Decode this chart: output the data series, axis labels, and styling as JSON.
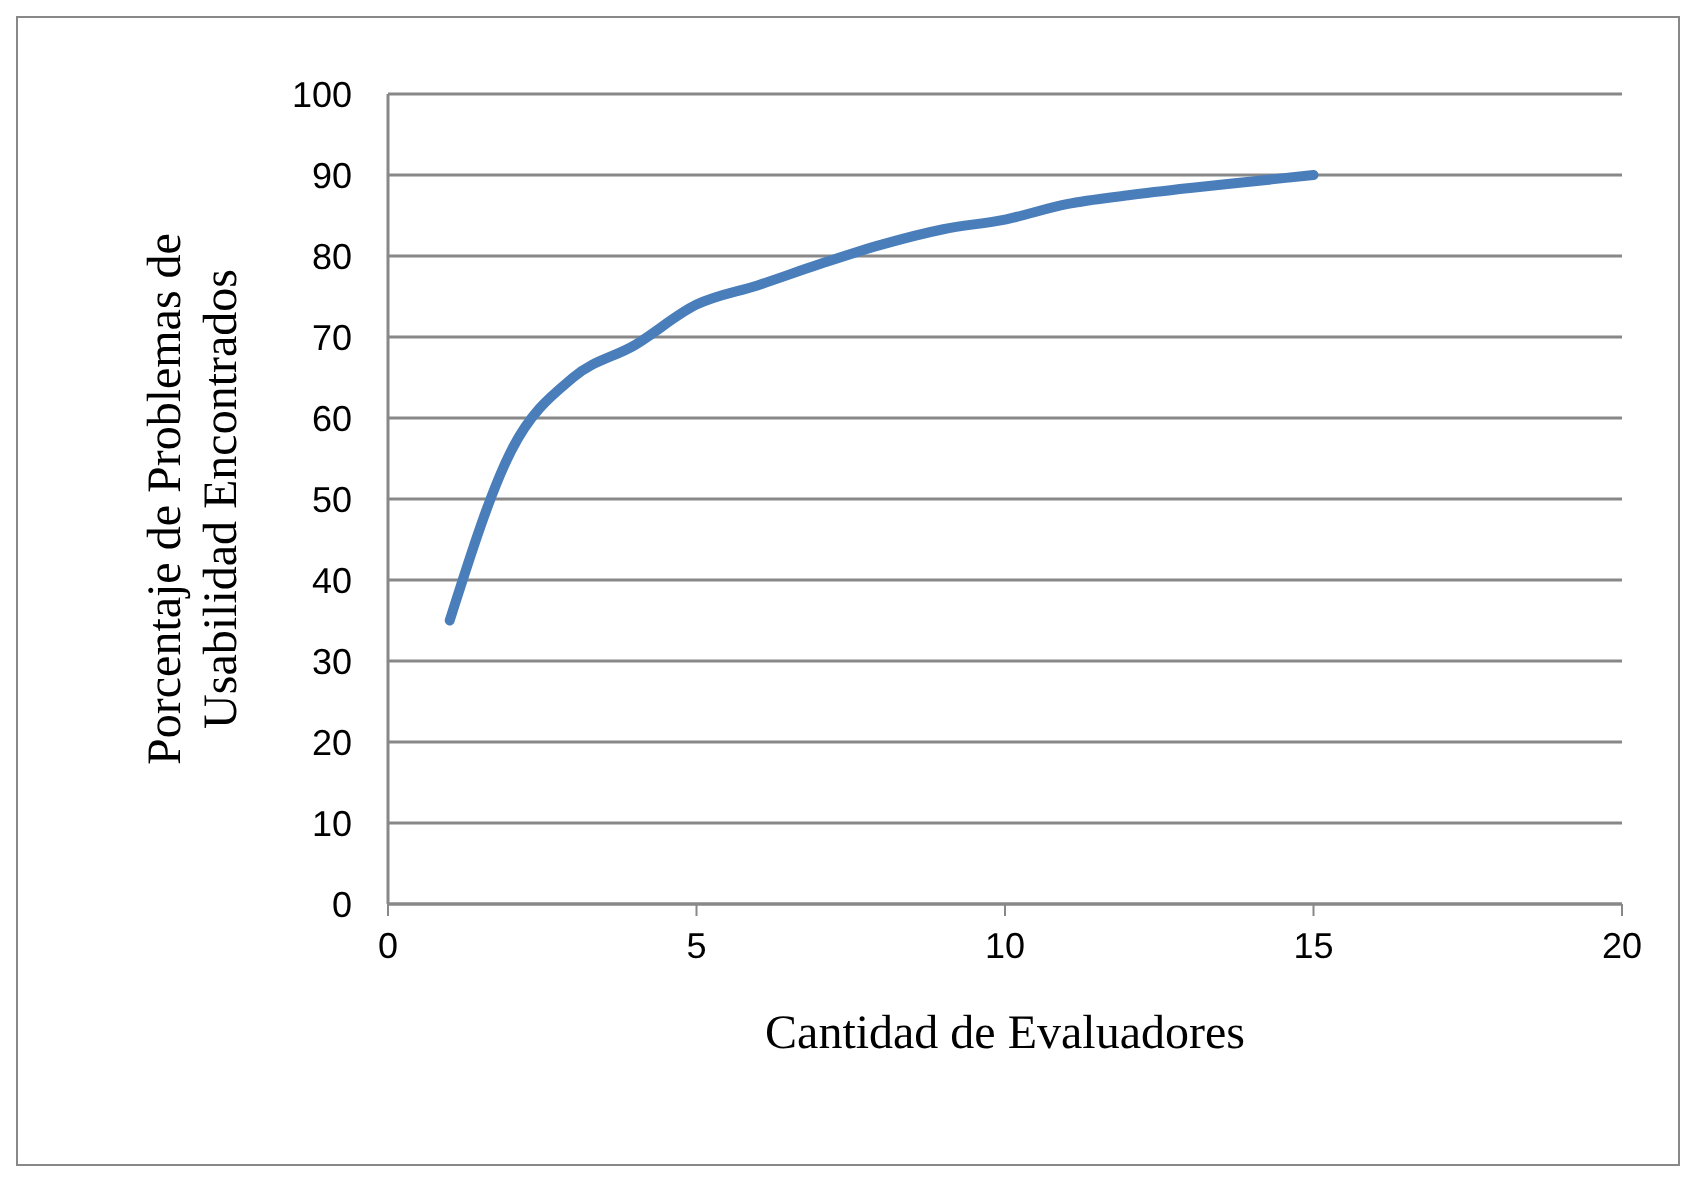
{
  "chart_data": {
    "type": "line",
    "xlabel": "Cantidad de Evaluadores",
    "ylabel": "Porcentaje de Problemas de Usabilidad Encontrados",
    "x": [
      1,
      2,
      3,
      4,
      5,
      6,
      7,
      8,
      9,
      10,
      11,
      12,
      13,
      14,
      15
    ],
    "series": [
      {
        "color": "#4a7ebb",
        "values": [
          35,
          56,
          65,
          69,
          74,
          76.4,
          79,
          81.4,
          83.3,
          84.5,
          86.4,
          87.5,
          88.4,
          89.2,
          90
        ]
      }
    ],
    "xlim": [
      0,
      20
    ],
    "xticks": [
      0,
      5,
      10,
      15,
      20
    ],
    "ylim": [
      0,
      100
    ],
    "yticks": [
      0,
      10,
      20,
      30,
      40,
      50,
      60,
      70,
      80,
      90,
      100
    ],
    "grid": "y",
    "legend": false,
    "marker": "none",
    "line_style": "solid"
  }
}
